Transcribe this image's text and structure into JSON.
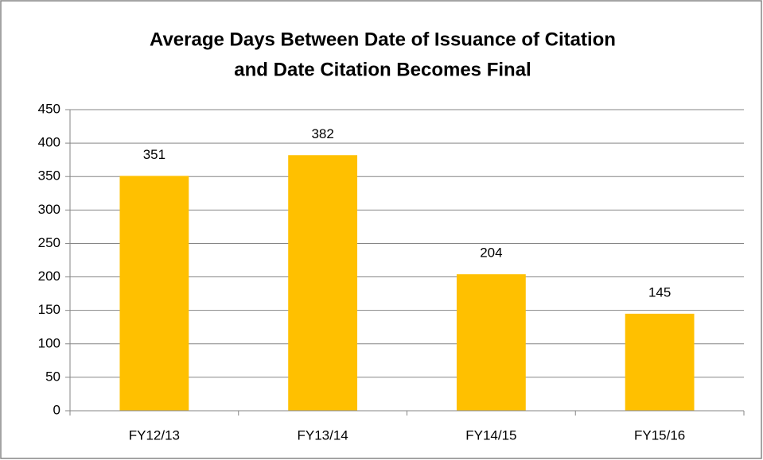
{
  "chart_data": {
    "type": "bar",
    "title": [
      "Average Days Between Date of Issuance of Citation",
      "and Date Citation Becomes Final"
    ],
    "categories": [
      "FY12/13",
      "FY13/14",
      "FY14/15",
      "FY15/16"
    ],
    "values": [
      351,
      382,
      204,
      145
    ],
    "color": "#ffc000",
    "ylim": [
      0,
      450
    ],
    "yticks": [
      0,
      50,
      100,
      150,
      200,
      250,
      300,
      350,
      400,
      450
    ],
    "grid": true
  }
}
